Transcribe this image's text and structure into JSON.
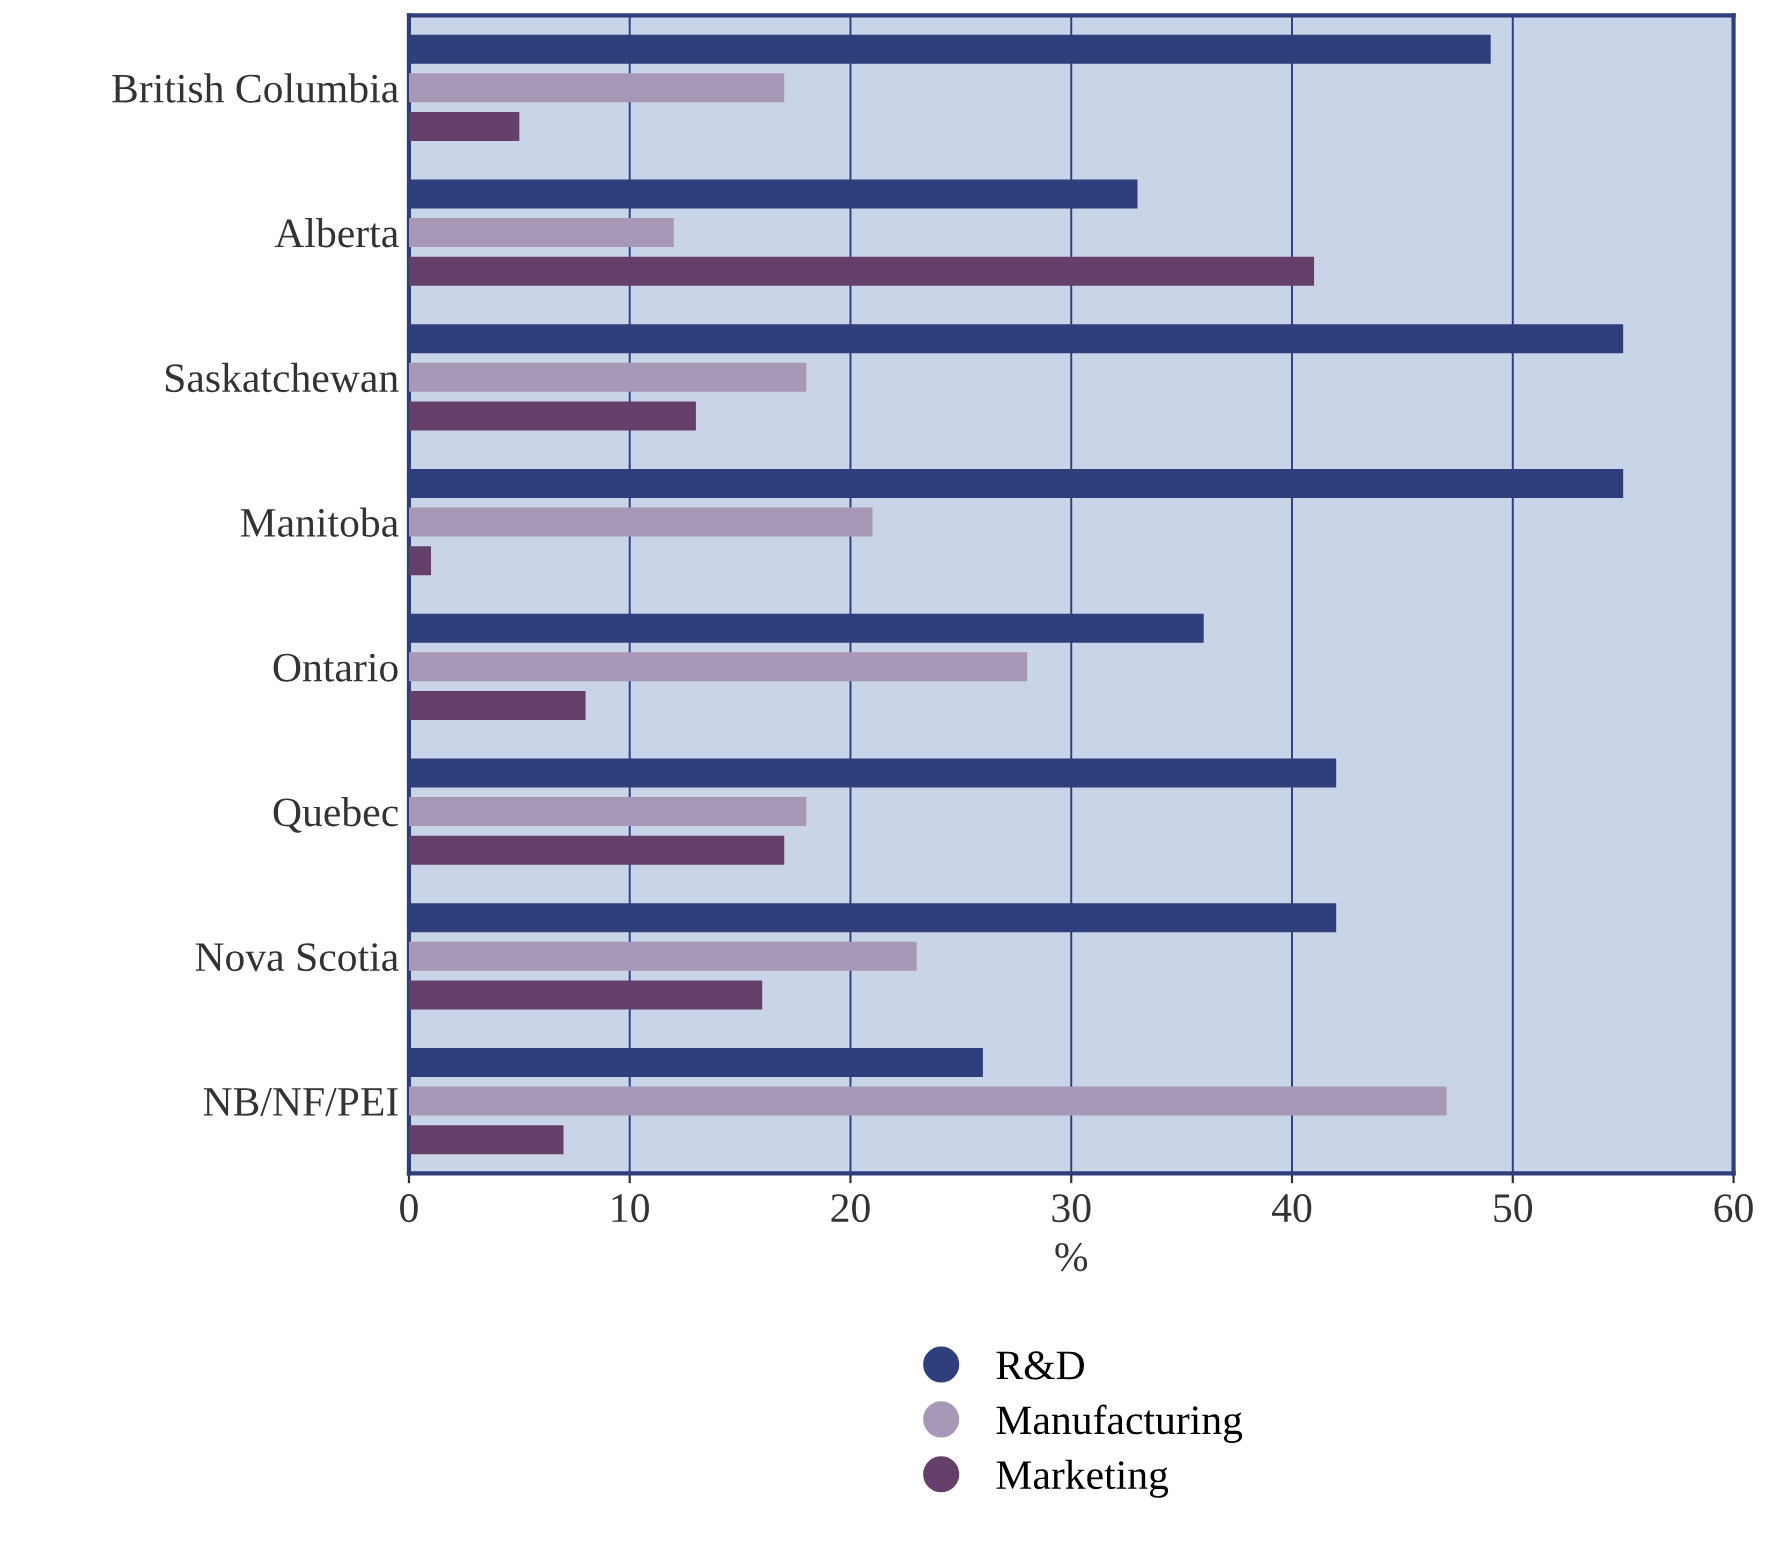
{
  "chart_data": {
    "type": "bar",
    "orientation": "horizontal",
    "xlabel": "%",
    "categories": [
      "British Columbia",
      "Alberta",
      "Saskatchewan",
      "Manitoba",
      "Ontario",
      "Quebec",
      "Nova Scotia",
      "NB/NF/PEI"
    ],
    "series": [
      {
        "name": "R&D",
        "color": "#2e3f7c",
        "values": [
          49,
          33,
          55,
          55,
          36,
          42,
          42,
          26
        ]
      },
      {
        "name": "Manufacturing",
        "color": "#a898b8",
        "values": [
          17,
          12,
          18,
          21,
          28,
          18,
          23,
          47
        ]
      },
      {
        "name": "Marketing",
        "color": "#65406a",
        "values": [
          5,
          41,
          13,
          1,
          8,
          17,
          16,
          7
        ]
      }
    ],
    "xlim": [
      0,
      60
    ],
    "xticks": [
      0,
      10,
      20,
      30,
      40,
      50,
      60
    ],
    "grid": "x",
    "legend": "bottom"
  }
}
